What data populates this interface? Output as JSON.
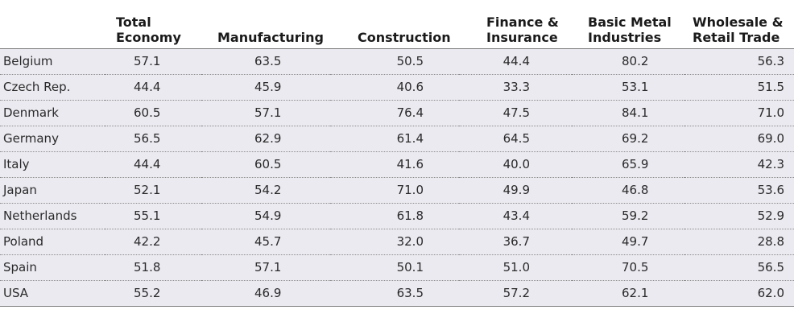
{
  "table": {
    "columns": [
      "",
      "Total Economy",
      "Manufacturing",
      "Construction",
      "Finance & Insurance",
      "Basic Metal Industries",
      "Wholesale & Retail Trade"
    ],
    "header_lines": {
      "total_economy": [
        "Total",
        "Economy"
      ],
      "manufacturing": [
        "Manufacturing"
      ],
      "construction": [
        "Construction"
      ],
      "finance_insurance": [
        "Finance &",
        "Insurance"
      ],
      "basic_metal": [
        "Basic Metal",
        "Industries"
      ],
      "wholesale_retail": [
        "Wholesale &",
        "Retail Trade"
      ]
    },
    "rows": [
      {
        "country": "Belgium",
        "values": [
          "57.1",
          "63.5",
          "50.5",
          "44.4",
          "80.2",
          "56.3"
        ]
      },
      {
        "country": "Czech Rep.",
        "values": [
          "44.4",
          "45.9",
          "40.6",
          "33.3",
          "53.1",
          "51.5"
        ]
      },
      {
        "country": "Denmark",
        "values": [
          "60.5",
          "57.1",
          "76.4",
          "47.5",
          "84.1",
          "71.0"
        ]
      },
      {
        "country": "Germany",
        "values": [
          "56.5",
          "62.9",
          "61.4",
          "64.5",
          "69.2",
          "69.0"
        ]
      },
      {
        "country": "Italy",
        "values": [
          "44.4",
          "60.5",
          "41.6",
          "40.0",
          "65.9",
          "42.3"
        ]
      },
      {
        "country": "Japan",
        "values": [
          "52.1",
          "54.2",
          "71.0",
          "49.9",
          "46.8",
          "53.6"
        ]
      },
      {
        "country": "Netherlands",
        "values": [
          "55.1",
          "54.9",
          "61.8",
          "43.4",
          "59.2",
          "52.9"
        ]
      },
      {
        "country": "Poland",
        "values": [
          "42.2",
          "45.7",
          "32.0",
          "36.7",
          "49.7",
          "28.8"
        ]
      },
      {
        "country": "Spain",
        "values": [
          "51.8",
          "57.1",
          "50.1",
          "51.0",
          "70.5",
          "56.5"
        ]
      },
      {
        "country": "USA",
        "values": [
          "55.2",
          "46.9",
          "63.5",
          "57.2",
          "62.1",
          "62.0"
        ]
      }
    ]
  },
  "colors": {
    "row_background": "#ebeaf0",
    "header_background": "#ffffff",
    "rule": "#7a7a7a"
  }
}
